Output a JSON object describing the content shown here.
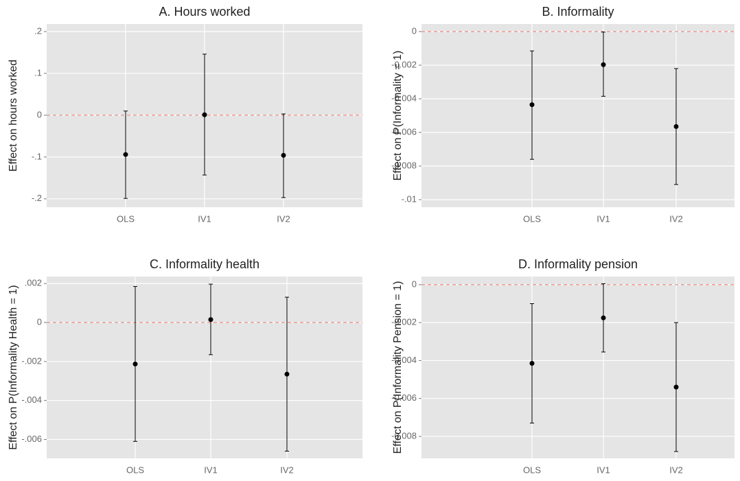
{
  "chart_data": [
    {
      "type": "errorbar",
      "title": "A. Hours worked",
      "y_label": "Effect on hours worked",
      "categories": [
        "OLS",
        "IV1",
        "IV2"
      ],
      "values": [
        -0.094,
        0.001,
        -0.096
      ],
      "lower": [
        -0.199,
        -0.143,
        -0.197
      ],
      "upper": [
        0.01,
        0.146,
        0.003
      ],
      "ylim": [
        -0.22,
        0.218
      ],
      "yticks": [
        {
          "value": -0.2,
          "label": "-.2"
        },
        {
          "value": -0.1,
          "label": "-.1"
        },
        0,
        {
          "value": 0.1,
          "label": ".1"
        },
        {
          "value": 0.2,
          "label": ".2"
        }
      ],
      "hline": 0,
      "grid": true,
      "color": "#000000",
      "hline_color": "#e8736b"
    },
    {
      "type": "errorbar",
      "title": "B. Informality",
      "y_label": "Effect on P(Informality = 1)",
      "categories": [
        "OLS",
        "IV1",
        "IV2"
      ],
      "values": [
        -0.00435,
        -0.00197,
        -0.00565
      ],
      "lower": [
        -0.0076,
        -0.00385,
        -0.0091
      ],
      "upper": [
        -0.00115,
        -3e-05,
        -0.0022
      ],
      "ylim": [
        -0.01045,
        0.00045
      ],
      "yticks": [
        {
          "value": -0.01,
          "label": "-.01"
        },
        -0.008,
        -0.006,
        -0.004,
        -0.002,
        0
      ],
      "hline": 0,
      "grid": true,
      "color": "#000000",
      "hline_color": "#e8736b"
    },
    {
      "type": "errorbar",
      "title": "C. Informality health",
      "y_label": "Effect on P(Informality Health = 1)",
      "categories": [
        "OLS",
        "IV1",
        "IV2"
      ],
      "values": [
        -0.00213,
        0.00015,
        -0.00265
      ],
      "lower": [
        -0.0061,
        -0.00165,
        -0.0066
      ],
      "upper": [
        0.00185,
        0.00197,
        0.0013
      ],
      "ylim": [
        -0.00697,
        0.00236
      ],
      "yticks": [
        {
          "value": -0.006,
          "label": "-.006"
        },
        {
          "value": -0.004,
          "label": "-.004"
        },
        {
          "value": -0.002,
          "label": "-.002"
        },
        0,
        {
          "value": 0.002,
          "label": ".002"
        }
      ],
      "hline": 0,
      "grid": true,
      "color": "#000000",
      "hline_color": "#e8736b"
    },
    {
      "type": "errorbar",
      "title": "D. Informality pension",
      "y_label": "Effect on P(Informality Pension = 1)",
      "categories": [
        "OLS",
        "IV1",
        "IV2"
      ],
      "values": [
        -0.00415,
        -0.00175,
        -0.0054
      ],
      "lower": [
        -0.0073,
        -0.00355,
        -0.0088
      ],
      "upper": [
        -0.001,
        5e-05,
        -0.002
      ],
      "ylim": [
        -0.00916,
        0.00043
      ],
      "yticks": [
        -0.008,
        -0.006,
        -0.004,
        -0.002,
        0
      ],
      "hline": 0,
      "grid": true,
      "color": "#000000",
      "hline_color": "#e8736b"
    }
  ]
}
